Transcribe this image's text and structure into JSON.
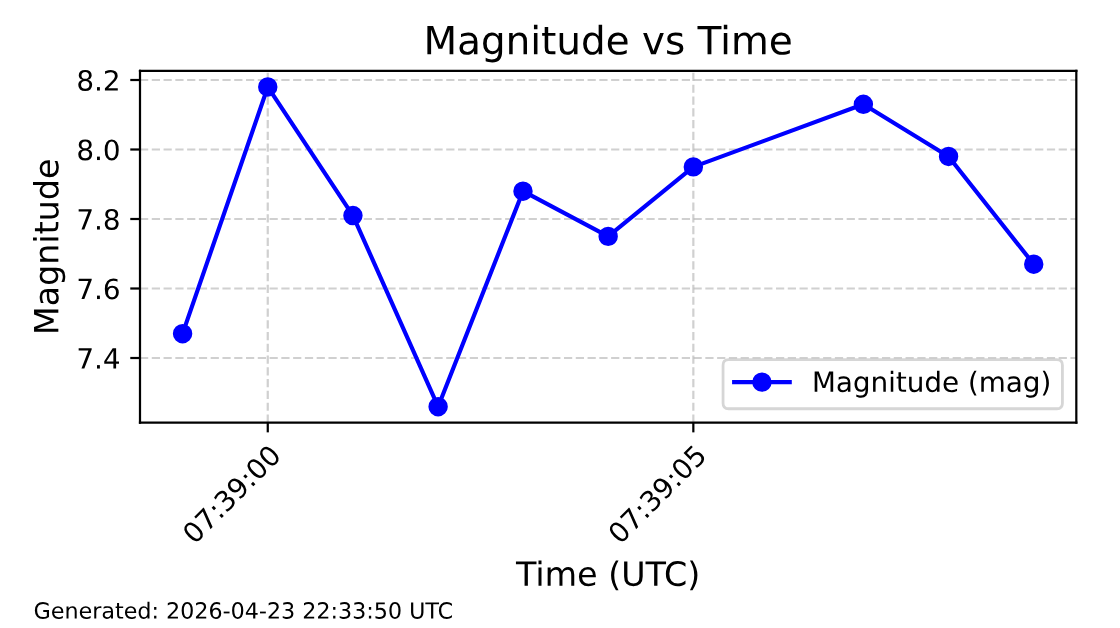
{
  "chart_data": {
    "type": "line",
    "title": "Magnitude vs Time",
    "xlabel": "Time (UTC)",
    "ylabel": "Magnitude",
    "x": [
      7.649722,
      7.65,
      7.650278,
      7.650556,
      7.650833,
      7.651111,
      7.651389,
      7.651944,
      7.652222,
      7.6525
    ],
    "series": [
      {
        "name": "Magnitude (mag)",
        "color": "#0000ff",
        "values": [
          7.47,
          8.18,
          7.81,
          7.26,
          7.88,
          7.75,
          7.95,
          8.13,
          7.98,
          7.67
        ]
      }
    ],
    "xlim": [
      7.649583,
      7.652639
    ],
    "ylim": [
      7.214,
      8.226
    ],
    "xticks": [
      {
        "value": 7.65,
        "label": "07:39:00"
      },
      {
        "value": 7.651389,
        "label": "07:39:05"
      }
    ],
    "yticks": [
      {
        "value": 7.4,
        "label": "7.4"
      },
      {
        "value": 7.6,
        "label": "7.6"
      },
      {
        "value": 7.8,
        "label": "7.8"
      },
      {
        "value": 8.0,
        "label": "8.0"
      },
      {
        "value": 8.2,
        "label": "8.2"
      }
    ],
    "grid": true,
    "legend": "lower right",
    "marker": "circle",
    "line_style": "solid",
    "annotations": [
      "Generated: 2026-04-23 22:33:50 UTC"
    ]
  }
}
